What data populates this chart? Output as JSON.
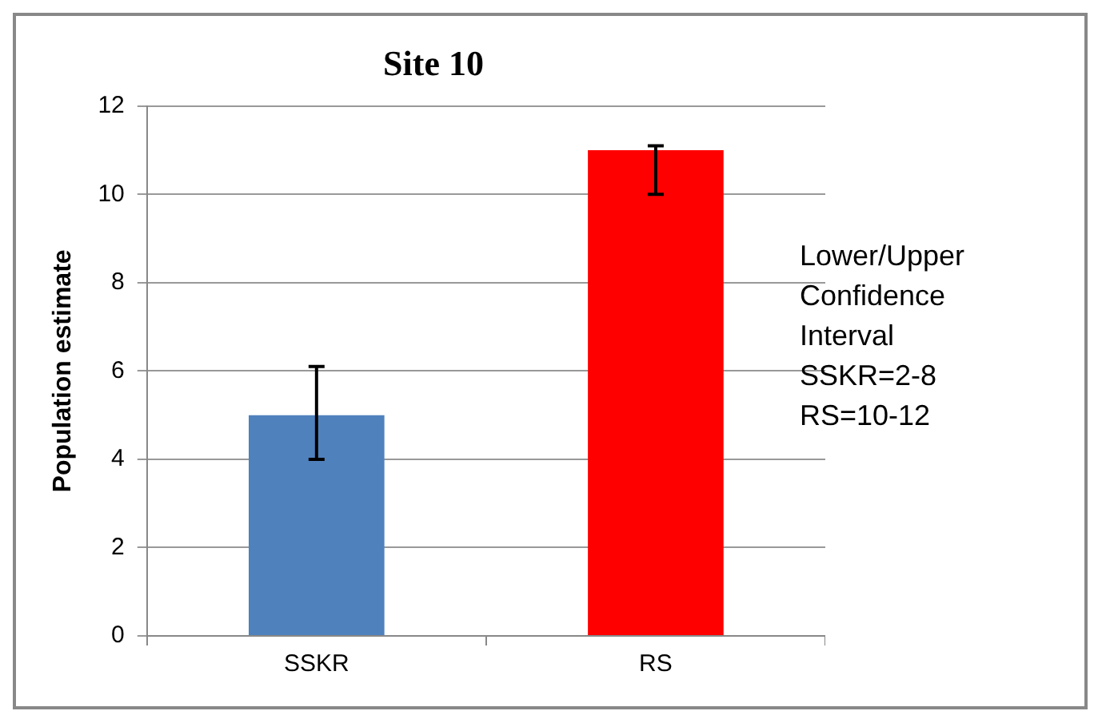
{
  "chart_data": {
    "type": "bar",
    "title": "Site 10",
    "ylabel": "Population estimate",
    "categories": [
      "SSKR",
      "RS"
    ],
    "values": [
      5,
      11
    ],
    "colors": [
      "#4f81bd",
      "#ff0000"
    ],
    "errors": [
      [
        4,
        6.1
      ],
      [
        10,
        11.1
      ]
    ],
    "ylim": [
      0,
      12
    ],
    "yticks": [
      0,
      2,
      4,
      6,
      8,
      10,
      12
    ],
    "grid": "y",
    "annotations": [
      "Lower/Upper",
      "Confidence",
      "Interval",
      "SSKR=2-8",
      "RS=10-12"
    ]
  }
}
